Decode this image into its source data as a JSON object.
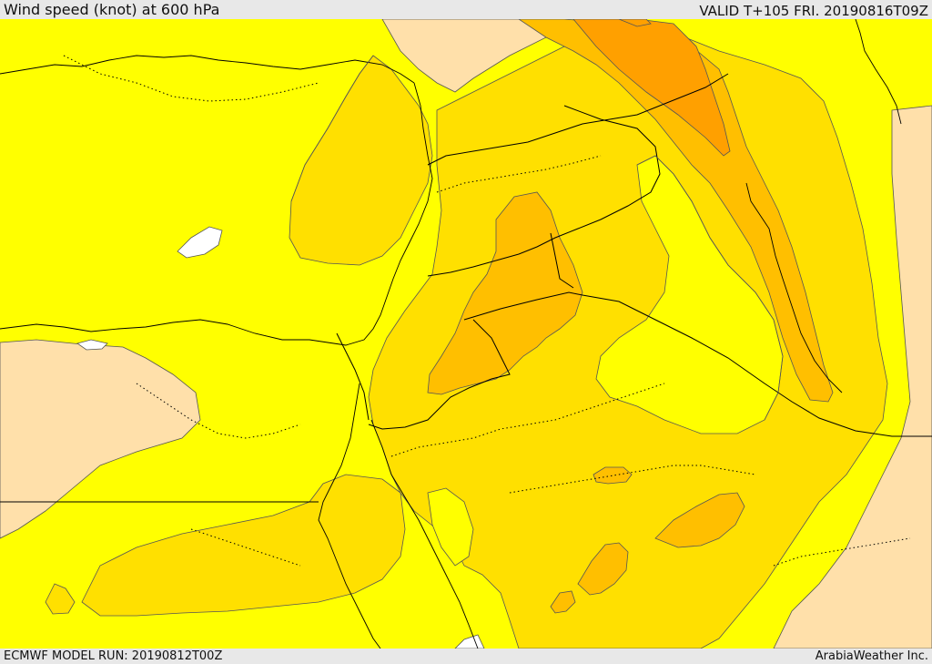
{
  "header": {
    "title": "Wind speed (knot) at 600 hPa",
    "valid": "VALID T+105 FRI. 20190816T09Z"
  },
  "footer": {
    "model_run": "ECMWF MODEL RUN: 20190812T00Z",
    "credit": "ArabiaWeather Inc."
  },
  "map": {
    "fill_colors": {
      "lowest_wind": "#ffe0aa",
      "light_wind": "#ffff00",
      "moderate_wind": "#ffe000",
      "fresh_wind": "#ffbf00",
      "strong_wind": "#ffa000",
      "missing": "#ffffff"
    },
    "line_colors": {
      "coastline": "#000000",
      "border": "#000000",
      "contour": "#555555"
    }
  }
}
